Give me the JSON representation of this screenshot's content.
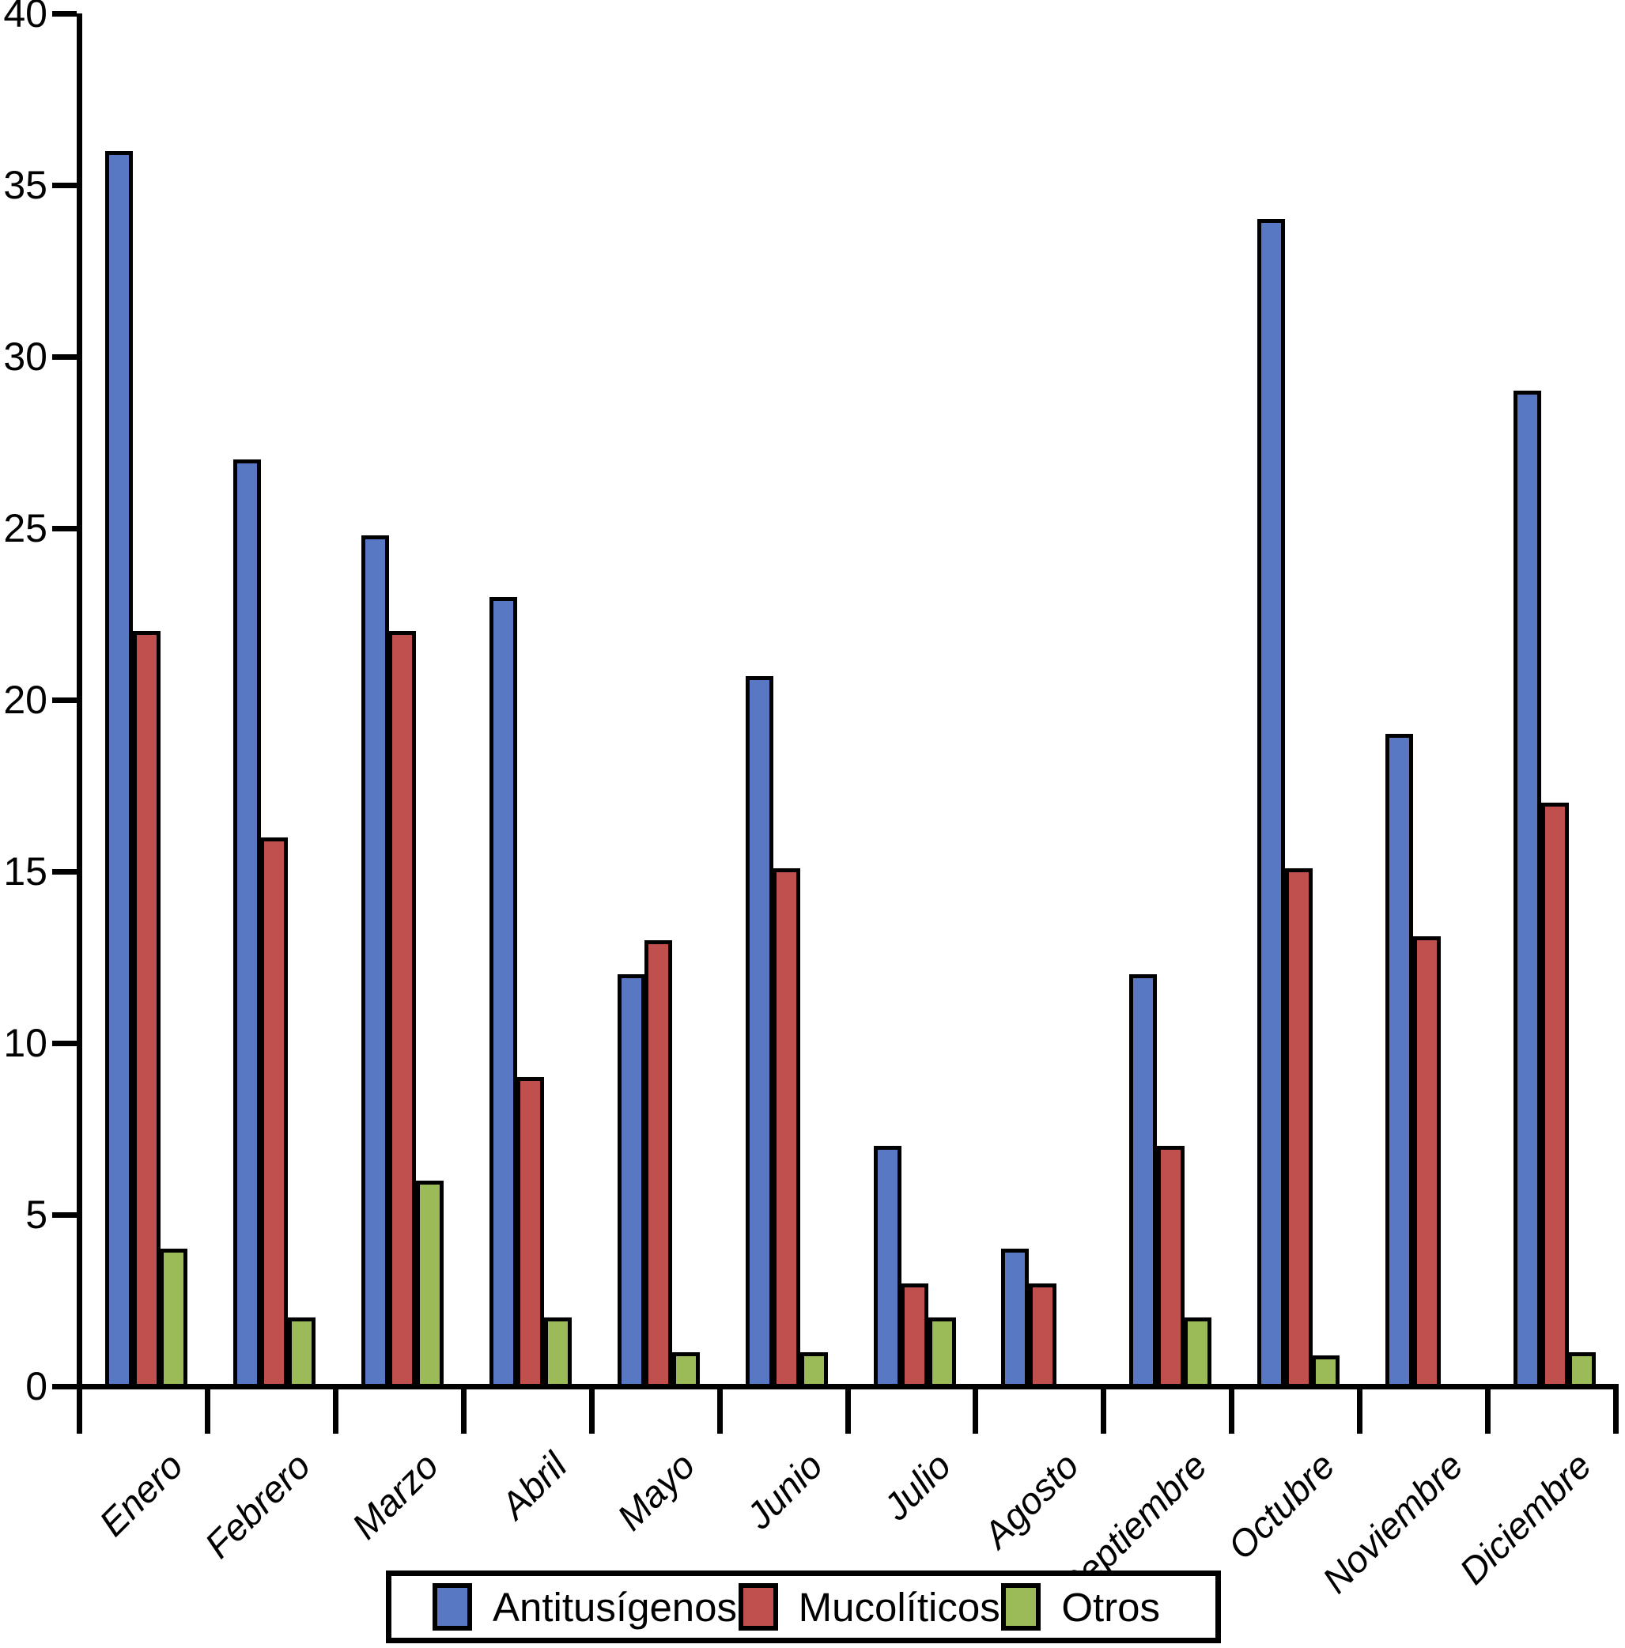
{
  "chart_data": {
    "type": "bar",
    "title": "",
    "xlabel": "",
    "ylabel": "",
    "categories": [
      "Enero",
      "Febrero",
      "Marzo",
      "Abril",
      "Mayo",
      "Junio",
      "Julio",
      "Agosto",
      "Septiembre",
      "Octubre",
      "Noviembre",
      "Diciembre"
    ],
    "series": [
      {
        "name": "Antitusígenos",
        "color": "#5878C4",
        "values": [
          36,
          27,
          24.8,
          23,
          12,
          20.7,
          7,
          4,
          12,
          34,
          19,
          29
        ]
      },
      {
        "name": "Mucolíticos",
        "color": "#C0504D",
        "values": [
          22,
          16,
          22,
          9,
          13,
          15.1,
          3,
          3,
          7,
          15.1,
          13.1,
          17
        ]
      },
      {
        "name": "Otros",
        "color": "#9BBB59",
        "values": [
          4,
          2,
          6,
          2,
          1,
          1,
          2,
          0,
          2,
          0.9,
          0,
          1
        ]
      }
    ],
    "ylim": [
      0,
      40
    ],
    "ytick_step": 5,
    "yticks": [
      0,
      5,
      10,
      15,
      20,
      25,
      30,
      35,
      40
    ],
    "grid": false,
    "legend_position": "bottom",
    "bar_border_color": "#000000",
    "axis_color": "#000000",
    "background_color": "#ffffff"
  }
}
